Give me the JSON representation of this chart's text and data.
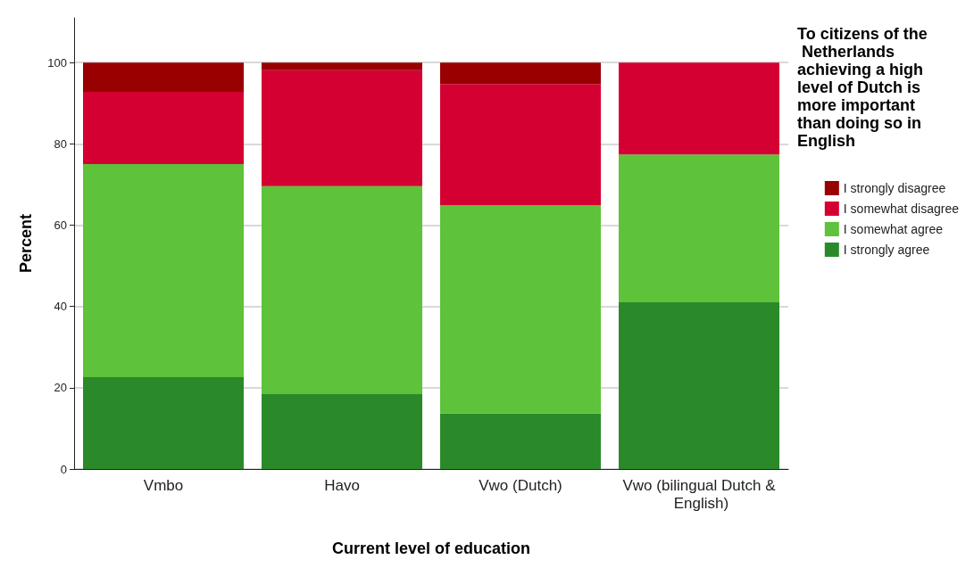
{
  "chart_data": {
    "type": "bar",
    "stacked": true,
    "xlabel": "Current level of education",
    "ylabel": "Percent",
    "legend_title": "To citizens of the Netherlands achieving a high level of Dutch is more important than doing so in English",
    "categories": [
      "Vmbo",
      "Havo",
      "Vwo (Dutch)",
      "Vwo (bilingual Dutch & English)"
    ],
    "series": [
      {
        "name": "I strongly agree",
        "color": "#2a8a2a",
        "values": [
          22.6,
          18.4,
          13.7,
          41.0
        ]
      },
      {
        "name": "I somewhat agree",
        "color": "#5ec23a",
        "values": [
          52.4,
          51.2,
          51.2,
          36.4
        ]
      },
      {
        "name": "I somewhat disagree",
        "color": "#d50032",
        "values": [
          17.8,
          28.5,
          29.8,
          22.6
        ]
      },
      {
        "name": "I strongly disagree",
        "color": "#990000",
        "values": [
          7.2,
          1.9,
          5.3,
          0
        ]
      }
    ],
    "ylim": [
      0,
      111
    ],
    "yticks": [
      0,
      20,
      40,
      60,
      80,
      100
    ],
    "grid": "y",
    "legend": "right"
  }
}
